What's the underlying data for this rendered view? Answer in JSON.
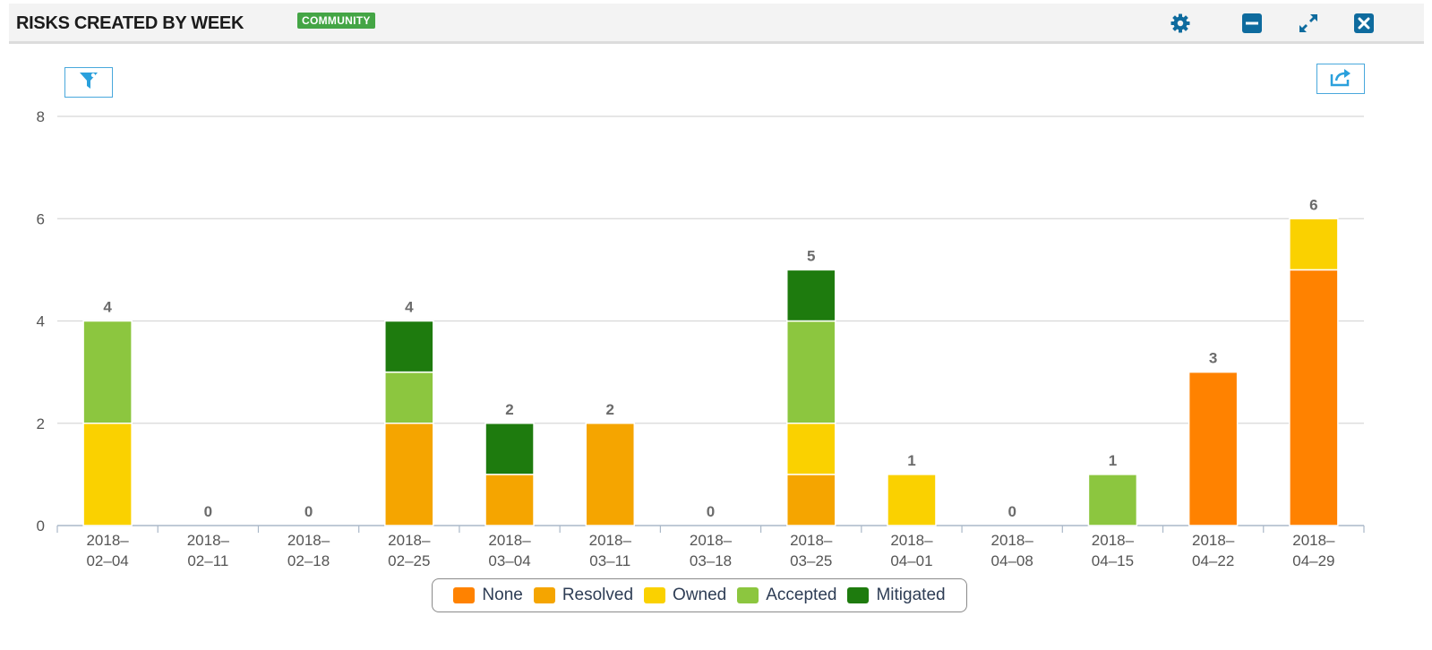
{
  "header": {
    "title": "RISKS CREATED BY WEEK",
    "badge": "COMMUNITY",
    "icons": [
      "gear-icon",
      "minimize-icon",
      "expand-icon",
      "close-icon"
    ],
    "icon_color": "#0e6b9e"
  },
  "toolbar": {
    "filter_icon": "filter-icon",
    "export_icon": "export-icon",
    "accent": "#2aa0dc"
  },
  "chart_data": {
    "type": "bar",
    "stacked": true,
    "title": "",
    "xlabel": "",
    "ylabel": "",
    "ylim": [
      0,
      8
    ],
    "yticks": [
      0,
      2,
      4,
      6,
      8
    ],
    "grid": true,
    "legend_position": "bottom-center",
    "categories": [
      "2018-02-04",
      "2018-02-11",
      "2018-02-18",
      "2018-02-25",
      "2018-03-04",
      "2018-03-11",
      "2018-03-18",
      "2018-03-25",
      "2018-04-01",
      "2018-04-08",
      "2018-04-15",
      "2018-04-22",
      "2018-04-29"
    ],
    "series": [
      {
        "name": "None",
        "color": "#ff8200",
        "values": [
          0,
          0,
          0,
          0,
          0,
          0,
          0,
          0,
          0,
          0,
          0,
          3,
          5
        ]
      },
      {
        "name": "Resolved",
        "color": "#f5a500",
        "values": [
          0,
          0,
          0,
          2,
          1,
          2,
          0,
          1,
          0,
          0,
          0,
          0,
          0
        ]
      },
      {
        "name": "Owned",
        "color": "#fad100",
        "values": [
          2,
          0,
          0,
          0,
          0,
          0,
          0,
          1,
          1,
          0,
          0,
          0,
          1
        ]
      },
      {
        "name": "Accepted",
        "color": "#8cc63f",
        "values": [
          2,
          0,
          0,
          1,
          0,
          0,
          0,
          2,
          0,
          0,
          1,
          0,
          0
        ]
      },
      {
        "name": "Mitigated",
        "color": "#1e7b0e",
        "values": [
          0,
          0,
          0,
          1,
          1,
          0,
          0,
          1,
          0,
          0,
          0,
          0,
          0
        ]
      }
    ],
    "totals": [
      "4",
      "0",
      "0",
      "4",
      "2",
      "2",
      "0",
      "5",
      "1",
      "0",
      "1",
      "3",
      "6"
    ]
  }
}
